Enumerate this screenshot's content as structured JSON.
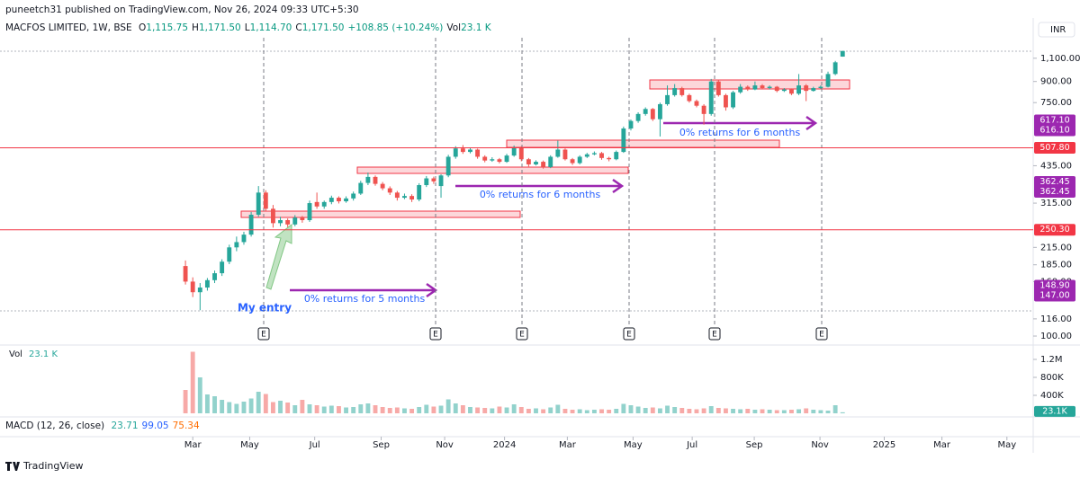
{
  "header": {
    "published": "puneetch31 published on TradingView.com, Nov 26, 2024 09:33 UTC+5:30",
    "symbol": "MACFOS LIMITED, 1W, BSE",
    "legend_info": [
      {
        "label": "O",
        "value": "1,115.75"
      },
      {
        "label": "H",
        "value": "1,171.50"
      },
      {
        "label": "L",
        "value": "1,114.70"
      },
      {
        "label": "C",
        "value": "1,171.50"
      }
    ],
    "change": "+108.85 (+10.24%)",
    "vol_label": "Vol",
    "vol_value": "23.1 K",
    "currency": "INR"
  },
  "chart_data": {
    "type": "candlestick",
    "log_scale": true,
    "up_color": "#26a69a",
    "down_color": "#ef5350",
    "xlim": [
      -25.4,
      116.1
    ],
    "ylim": [
      94,
      1313
    ],
    "yticks": [
      {
        "value": 100,
        "label": "100.00"
      },
      {
        "value": 116,
        "label": "116.00"
      },
      {
        "value": 160,
        "label": "160.00"
      },
      {
        "value": 185,
        "label": "185.00"
      },
      {
        "value": 215,
        "label": "215.00"
      },
      {
        "value": 315,
        "label": "315.00"
      },
      {
        "value": 435,
        "label": "435.00"
      },
      {
        "value": 750,
        "label": "750.00"
      },
      {
        "value": 900,
        "label": "900.00"
      },
      {
        "value": 1100,
        "label": "1,100.00"
      }
    ],
    "xticks": [
      {
        "value": 1.0,
        "label": "Mar"
      },
      {
        "value": 8.8,
        "label": "May"
      },
      {
        "value": 17.7,
        "label": "Jul"
      },
      {
        "value": 26.8,
        "label": "Sep"
      },
      {
        "value": 35.5,
        "label": "Nov"
      },
      {
        "value": 43.7,
        "label": "2024"
      },
      {
        "value": 52.3,
        "label": "Mar"
      },
      {
        "value": 61.3,
        "label": "May"
      },
      {
        "value": 69.4,
        "label": "Jul"
      },
      {
        "value": 77.9,
        "label": "Sep"
      },
      {
        "value": 86.9,
        "label": "Nov"
      },
      {
        "value": 95.7,
        "label": "2025"
      },
      {
        "value": 103.6,
        "label": "Mar"
      },
      {
        "value": 112.5,
        "label": "May"
      }
    ],
    "open": [
      183,
      160,
      146,
      152,
      162,
      172,
      190,
      215,
      225,
      240,
      285,
      345,
      300,
      265,
      272,
      262,
      278,
      272,
      318,
      306,
      318,
      330,
      320,
      328,
      342,
      375,
      395,
      372,
      358,
      345,
      330,
      335,
      325,
      368,
      390,
      365,
      400,
      470,
      505,
      490,
      500,
      470,
      455,
      460,
      450,
      475,
      510,
      460,
      440,
      450,
      430,
      470,
      500,
      460,
      445,
      470,
      480,
      485,
      465,
      460,
      490,
      600,
      640,
      680,
      710,
      650,
      740,
      800,
      850,
      800,
      760,
      730,
      680,
      900,
      800,
      720,
      820,
      860,
      840,
      870,
      850,
      860,
      830,
      840,
      810,
      870,
      830,
      850,
      860,
      960,
      1115.75
    ],
    "high": [
      192,
      166,
      158,
      165,
      176,
      194,
      220,
      236,
      246,
      292,
      365,
      352,
      310,
      280,
      276,
      284,
      282,
      322,
      345,
      322,
      336,
      334,
      334,
      348,
      382,
      410,
      400,
      378,
      364,
      350,
      342,
      340,
      374,
      398,
      396,
      404,
      478,
      515,
      520,
      508,
      504,
      476,
      468,
      465,
      482,
      518,
      514,
      465,
      456,
      455,
      476,
      540,
      505,
      465,
      476,
      486,
      492,
      490,
      470,
      496,
      610,
      648,
      690,
      720,
      716,
      750,
      870,
      880,
      860,
      810,
      770,
      740,
      920,
      910,
      810,
      830,
      880,
      870,
      900,
      880,
      870,
      866,
      850,
      848,
      960,
      880,
      860,
      870,
      980,
      1075,
      1171.5
    ],
    "low": [
      156,
      140,
      125,
      148,
      158,
      168,
      186,
      208,
      220,
      236,
      280,
      295,
      255,
      258,
      256,
      258,
      266,
      268,
      300,
      300,
      312,
      314,
      316,
      322,
      338,
      368,
      366,
      352,
      338,
      322,
      326,
      318,
      320,
      362,
      372,
      330,
      394,
      462,
      482,
      484,
      462,
      448,
      450,
      444,
      446,
      470,
      452,
      432,
      436,
      424,
      426,
      466,
      455,
      438,
      440,
      465,
      476,
      458,
      452,
      456,
      486,
      590,
      630,
      670,
      640,
      560,
      730,
      790,
      790,
      750,
      720,
      620,
      670,
      790,
      700,
      710,
      810,
      830,
      835,
      840,
      840,
      820,
      822,
      800,
      800,
      760,
      825,
      845,
      855,
      950,
      1114.7
    ],
    "close": [
      160,
      146,
      152,
      162,
      172,
      190,
      215,
      225,
      240,
      285,
      345,
      300,
      265,
      272,
      262,
      278,
      272,
      315,
      306,
      318,
      330,
      320,
      328,
      342,
      375,
      395,
      372,
      358,
      345,
      330,
      335,
      325,
      368,
      390,
      380,
      400,
      470,
      505,
      490,
      500,
      470,
      455,
      460,
      450,
      475,
      510,
      460,
      440,
      450,
      430,
      470,
      500,
      460,
      445,
      470,
      480,
      485,
      465,
      460,
      490,
      600,
      640,
      680,
      710,
      650,
      740,
      800,
      850,
      800,
      760,
      730,
      680,
      900,
      800,
      720,
      820,
      860,
      840,
      870,
      850,
      860,
      830,
      840,
      810,
      870,
      830,
      850,
      860,
      960,
      1062,
      1171.5
    ],
    "volume": [
      520000,
      1370000,
      800000,
      420000,
      380000,
      300000,
      250000,
      210000,
      260000,
      330000,
      480000,
      430000,
      250000,
      280000,
      240000,
      180000,
      300000,
      200000,
      180000,
      150000,
      170000,
      160000,
      130000,
      140000,
      200000,
      220000,
      180000,
      140000,
      120000,
      130000,
      110000,
      100000,
      140000,
      190000,
      150000,
      170000,
      310000,
      220000,
      180000,
      140000,
      130000,
      120000,
      110000,
      150000,
      130000,
      200000,
      140000,
      100000,
      110000,
      90000,
      130000,
      190000,
      100000,
      80000,
      90000,
      70000,
      80000,
      90000,
      80000,
      100000,
      210000,
      180000,
      150000,
      120000,
      130000,
      110000,
      170000,
      140000,
      120000,
      100000,
      90000,
      110000,
      160000,
      120000,
      110000,
      100000,
      90000,
      100000,
      80000,
      90000,
      80000,
      70000,
      70000,
      80000,
      90000,
      110000,
      80000,
      70000,
      60000,
      180000,
      23100
    ],
    "volume_ylim": [
      0,
      1440000
    ],
    "volume_ticks": [
      {
        "value": 400000,
        "label": "400K"
      },
      {
        "value": 800000,
        "label": "800K"
      },
      {
        "value": 1200000,
        "label": "1.2M"
      }
    ],
    "volume_badge": {
      "value": 23100,
      "label": "23.1K"
    },
    "price_badges": [
      {
        "color": "#9c27b0",
        "rows": [
          {
            "value": 617.1,
            "label": "617.10"
          },
          {
            "value": 616.1,
            "label": "616.10"
          }
        ]
      },
      {
        "color": "#f23645",
        "line": true,
        "rows": [
          {
            "value": 507.8,
            "label": "507.80"
          }
        ]
      },
      {
        "color": "#9c27b0",
        "rows": [
          {
            "value": 362.45,
            "label": "362.45"
          },
          {
            "value": 362.45,
            "label": "362.45"
          }
        ]
      },
      {
        "color": "#f23645",
        "line": true,
        "rows": [
          {
            "value": 250.3,
            "label": "250.30"
          }
        ]
      },
      {
        "color": "#9c27b0",
        "rows": [
          {
            "value": 148.9,
            "label": "148.90"
          },
          {
            "value": 147.0,
            "label": "147.00"
          }
        ]
      }
    ],
    "annotations": [
      "0% returns for 5 months",
      "0% returns for 6 months",
      "0% returns for 6 months",
      "My entry"
    ],
    "event_markers": [
      "E",
      "E",
      "E",
      "E",
      "E",
      "E"
    ],
    "macd": {
      "label": "MACD (12, 26, close)",
      "values": [
        "23.71",
        "99.05",
        "75.34"
      ],
      "colors": [
        "#26a69a",
        "#2962ff",
        "#ff6d00"
      ]
    },
    "brand": "TradingView"
  }
}
